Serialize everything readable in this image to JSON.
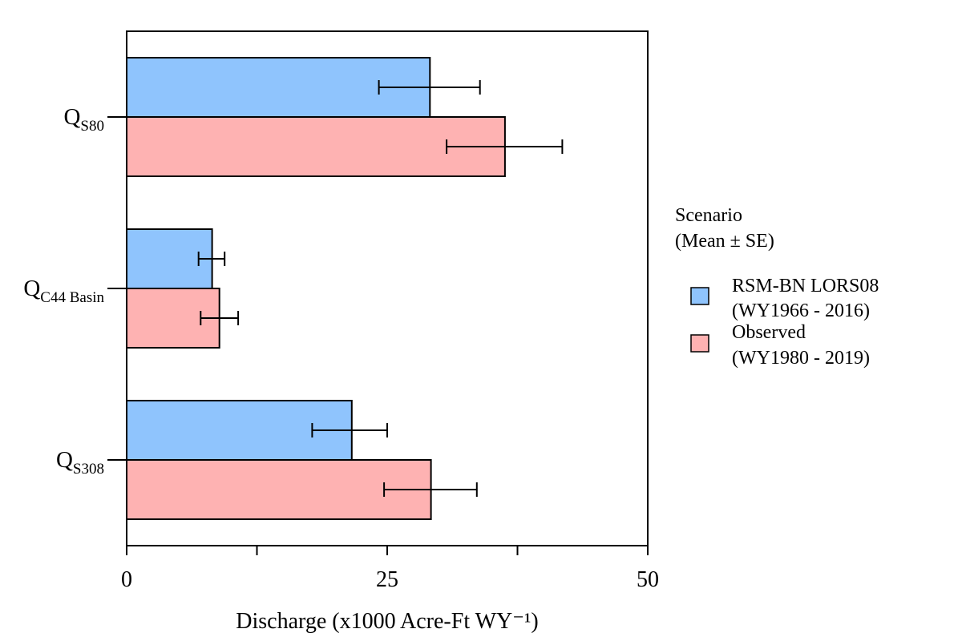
{
  "chart_data": {
    "type": "bar",
    "orientation": "horizontal",
    "categories": [
      {
        "main": "Q",
        "sub": "S80"
      },
      {
        "main": "Q",
        "sub": "C44 Basin"
      },
      {
        "main": "Q",
        "sub": "S308"
      }
    ],
    "series": [
      {
        "name_line1": "RSM-BN LORS08",
        "name_line2": "(WY1966 - 2016)",
        "color": "#8fc4fd",
        "values": [
          29.1,
          8.2,
          21.6
        ],
        "error_low": [
          24.2,
          6.9,
          17.8
        ],
        "error_high": [
          33.9,
          9.4,
          25.0
        ]
      },
      {
        "name_line1": "Observed",
        "name_line2": "(WY1980 - 2019)",
        "color": "#feb2b2",
        "values": [
          36.3,
          8.9,
          29.2
        ],
        "error_low": [
          30.7,
          7.1,
          24.7
        ],
        "error_high": [
          41.8,
          10.7,
          33.6
        ]
      }
    ],
    "xlim": [
      0,
      50
    ],
    "x_ticks_labeled": [
      0,
      25,
      50
    ],
    "x_ticks_minor": [
      12.5,
      37.5
    ],
    "xlabel": "Discharge (x1000 Acre-Ft WY⁻¹)",
    "legend": {
      "title_line1": "Scenario",
      "title_line2": "(Mean ± SE)",
      "placement": "right"
    },
    "grid": false
  }
}
